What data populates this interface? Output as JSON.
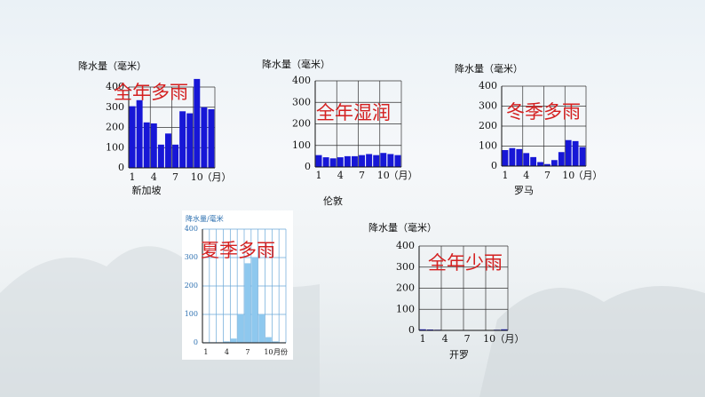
{
  "chart_data": [
    {
      "type": "bar",
      "ylabel": "降水量（毫米）",
      "annotation": "全年多雨",
      "caption": "新加坡",
      "x_label": "（月）",
      "categories": [
        "1",
        null,
        null,
        "4",
        null,
        null,
        "7",
        null,
        null,
        "10",
        null,
        null
      ],
      "values": [
        305,
        335,
        225,
        220,
        115,
        170,
        115,
        280,
        270,
        440,
        300,
        290
      ],
      "color": "#1717d6",
      "ylim": [
        0,
        400
      ],
      "yticks": [
        0,
        100,
        200,
        300,
        400
      ],
      "grid": true
    },
    {
      "type": "bar",
      "ylabel": "降水量（毫米）",
      "annotation": "全年湿润",
      "caption": "伦敦",
      "x_label": "（月）",
      "categories": [
        "1",
        null,
        null,
        "4",
        null,
        null,
        "7",
        null,
        null,
        "10",
        null,
        null
      ],
      "values": [
        55,
        45,
        40,
        45,
        50,
        50,
        55,
        60,
        55,
        65,
        60,
        55
      ],
      "color": "#1717d6",
      "ylim": [
        0,
        400
      ],
      "yticks": [
        0,
        100,
        200,
        300,
        400
      ],
      "grid": true
    },
    {
      "type": "bar",
      "ylabel": "降水量（毫米）",
      "annotation": "冬季多雨",
      "caption": "罗马",
      "x_label": "（月）",
      "categories": [
        "1",
        null,
        null,
        "4",
        null,
        null,
        "7",
        null,
        null,
        "10",
        null,
        null
      ],
      "values": [
        80,
        90,
        85,
        65,
        45,
        20,
        10,
        30,
        70,
        130,
        125,
        95
      ],
      "color": "#1717d6",
      "ylim": [
        0,
        400
      ],
      "yticks": [
        0,
        100,
        200,
        300,
        400
      ],
      "grid": true
    },
    {
      "type": "bar",
      "ylabel": "降水量/毫米",
      "annotation": "夏季多雨",
      "x_label": "月份",
      "categories": [
        "1",
        null,
        null,
        "4",
        null,
        null,
        "7",
        null,
        null,
        "10",
        null,
        null
      ],
      "values": [
        2,
        2,
        2,
        5,
        15,
        100,
        280,
        300,
        100,
        20,
        5,
        2
      ],
      "color": "#8ec8ee",
      "ylim": [
        0,
        400
      ],
      "yticks": [
        0,
        100,
        200,
        300,
        400
      ],
      "grid": true
    },
    {
      "type": "bar",
      "ylabel": "降水量（毫米）",
      "annotation": "全年少雨",
      "caption": "开罗",
      "x_label": "（月）",
      "categories": [
        "1",
        null,
        null,
        "4",
        null,
        null,
        "7",
        null,
        null,
        "10",
        null,
        null
      ],
      "values": [
        5,
        4,
        3,
        1,
        1,
        0,
        0,
        0,
        0,
        1,
        3,
        5
      ],
      "color": "#1717d6",
      "ylim": [
        0,
        400
      ],
      "yticks": [
        0,
        100,
        200,
        300,
        400
      ],
      "grid": true
    }
  ]
}
